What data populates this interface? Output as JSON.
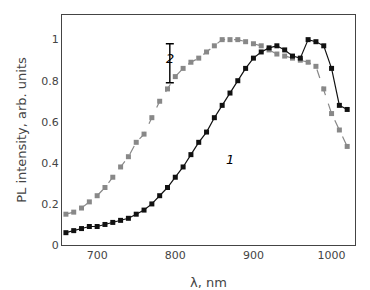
{
  "chart_data": {
    "type": "line",
    "xlabel": "λ, nm",
    "ylabel": "PL intensity, arb. units",
    "x": [
      660,
      670,
      680,
      690,
      700,
      710,
      720,
      730,
      740,
      750,
      760,
      770,
      780,
      790,
      800,
      810,
      820,
      830,
      840,
      850,
      860,
      870,
      880,
      890,
      900,
      910,
      920,
      930,
      940,
      950,
      960,
      970,
      980,
      990,
      1000,
      1010,
      1020
    ],
    "series": [
      {
        "color": "#888888",
        "line_style": "dashed",
        "marker": "square",
        "values": [
          0.15,
          0.16,
          0.18,
          0.21,
          0.24,
          0.28,
          0.33,
          0.38,
          0.43,
          0.5,
          0.54,
          0.62,
          0.7,
          0.76,
          0.82,
          0.86,
          0.89,
          0.91,
          0.94,
          0.97,
          1.0,
          1.0,
          1.0,
          0.99,
          0.98,
          0.97,
          0.95,
          0.93,
          0.92,
          0.91,
          0.9,
          0.89,
          0.87,
          0.76,
          0.64,
          0.56,
          0.48
        ]
      },
      {
        "color": "#111111",
        "line_style": "solid",
        "marker": "square",
        "values": [
          0.06,
          0.07,
          0.08,
          0.09,
          0.09,
          0.1,
          0.11,
          0.12,
          0.13,
          0.15,
          0.17,
          0.2,
          0.24,
          0.28,
          0.33,
          0.38,
          0.44,
          0.5,
          0.55,
          0.62,
          0.68,
          0.74,
          0.8,
          0.86,
          0.91,
          0.94,
          0.96,
          0.97,
          0.95,
          0.92,
          0.91,
          1.0,
          0.99,
          0.97,
          0.86,
          0.68,
          0.66
        ]
      }
    ],
    "annotations": [
      {
        "text": "1",
        "x": 862,
        "y": 0.37
      },
      {
        "text": "2",
        "x": 785,
        "y": 0.86
      }
    ],
    "error_bar": {
      "x": 793,
      "y": 0.885,
      "yerr": 0.095,
      "color": "#000000"
    },
    "xlim": [
      655,
      1030
    ],
    "ylim": [
      0.0,
      1.12
    ],
    "xticks": [
      700,
      800,
      900,
      1000
    ],
    "yticks": [
      0.0,
      0.2,
      0.4,
      0.6,
      0.8,
      1.0
    ],
    "grid": false
  }
}
